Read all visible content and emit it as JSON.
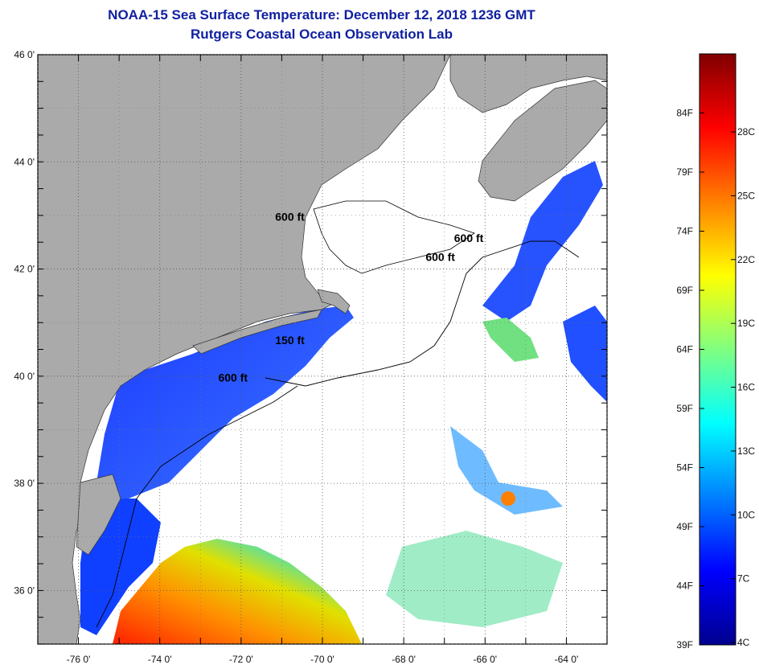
{
  "title": "NOAA-15 Sea Surface Temperature:  December 12, 2018 1236 GMT",
  "subtitle": "Rutgers Coastal Ocean Observation Lab",
  "map": {
    "lat_ticks": [
      {
        "value": 46,
        "label": "46 0'"
      },
      {
        "value": 44,
        "label": "44 0'"
      },
      {
        "value": 42,
        "label": "42 0'"
      },
      {
        "value": 40,
        "label": "40 0'"
      },
      {
        "value": 38,
        "label": "38 0'"
      },
      {
        "value": 36,
        "label": "36 0'"
      }
    ],
    "lon_ticks": [
      {
        "value": -76,
        "label": "-76 0'"
      },
      {
        "value": -74,
        "label": "-74 0'"
      },
      {
        "value": -72,
        "label": "-72 0'"
      },
      {
        "value": -70,
        "label": "-70 0'"
      },
      {
        "value": -68,
        "label": "-68 0'"
      },
      {
        "value": -66,
        "label": "-66 0'"
      },
      {
        "value": -64,
        "label": "-64 0'"
      }
    ],
    "lat_range": [
      35,
      46
    ],
    "lon_range": [
      -77,
      -63
    ],
    "grid": "dotted",
    "land_color": "#aaaaaa",
    "contour_labels": [
      {
        "text": "600 ft",
        "lon": -70.8,
        "lat": 42.9
      },
      {
        "text": "600 ft",
        "lon": -66.4,
        "lat": 42.5
      },
      {
        "text": "600 ft",
        "lon": -67.1,
        "lat": 42.15
      },
      {
        "text": "150 ft",
        "lon": -70.8,
        "lat": 40.6
      },
      {
        "text": "600 ft",
        "lon": -72.2,
        "lat": 39.9
      }
    ]
  },
  "colorbar": {
    "fahrenheit": [
      "84F",
      "79F",
      "74F",
      "69F",
      "64F",
      "59F",
      "54F",
      "49F",
      "44F",
      "39F"
    ],
    "celsius": [
      "28C",
      "25C",
      "22C",
      "19C",
      "16C",
      "13C",
      "10C",
      "7C",
      "4C"
    ],
    "colors": [
      "#00008f",
      "#0000ff",
      "#0080ff",
      "#00ffff",
      "#80ff80",
      "#ffff00",
      "#ff8000",
      "#ff0000",
      "#800000"
    ]
  }
}
